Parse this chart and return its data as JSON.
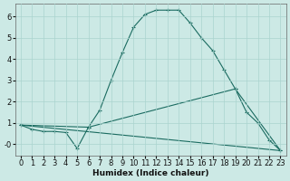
{
  "xlabel": "Humidex (Indice chaleur)",
  "xlim": [
    -0.5,
    23.5
  ],
  "ylim": [
    -0.55,
    6.6
  ],
  "yticks": [
    0,
    1,
    2,
    3,
    4,
    5,
    6
  ],
  "ytick_labels": [
    "-0",
    "1",
    "2",
    "3",
    "4",
    "5",
    "6"
  ],
  "xticks": [
    0,
    1,
    2,
    3,
    4,
    5,
    6,
    7,
    8,
    9,
    10,
    11,
    12,
    13,
    14,
    15,
    16,
    17,
    18,
    19,
    20,
    21,
    22,
    23
  ],
  "bg_color": "#cce9e5",
  "line_color": "#1a6b60",
  "line1_x": [
    0,
    1,
    2,
    3,
    4,
    5,
    6,
    7,
    8,
    9,
    10,
    11,
    12,
    13,
    14,
    15,
    16,
    17,
    18,
    19,
    20,
    21,
    22,
    23
  ],
  "line1_y": [
    0.9,
    0.7,
    0.6,
    0.6,
    0.55,
    -0.2,
    0.8,
    1.6,
    3.0,
    4.3,
    5.5,
    6.1,
    6.3,
    6.3,
    6.3,
    5.7,
    5.0,
    4.4,
    3.5,
    2.6,
    1.5,
    1.0,
    0.2,
    -0.3
  ],
  "line3_x": [
    0,
    6,
    19,
    23
  ],
  "line3_y": [
    0.9,
    0.8,
    2.6,
    -0.3
  ],
  "line4_x": [
    0,
    23
  ],
  "line4_y": [
    0.9,
    -0.3
  ]
}
